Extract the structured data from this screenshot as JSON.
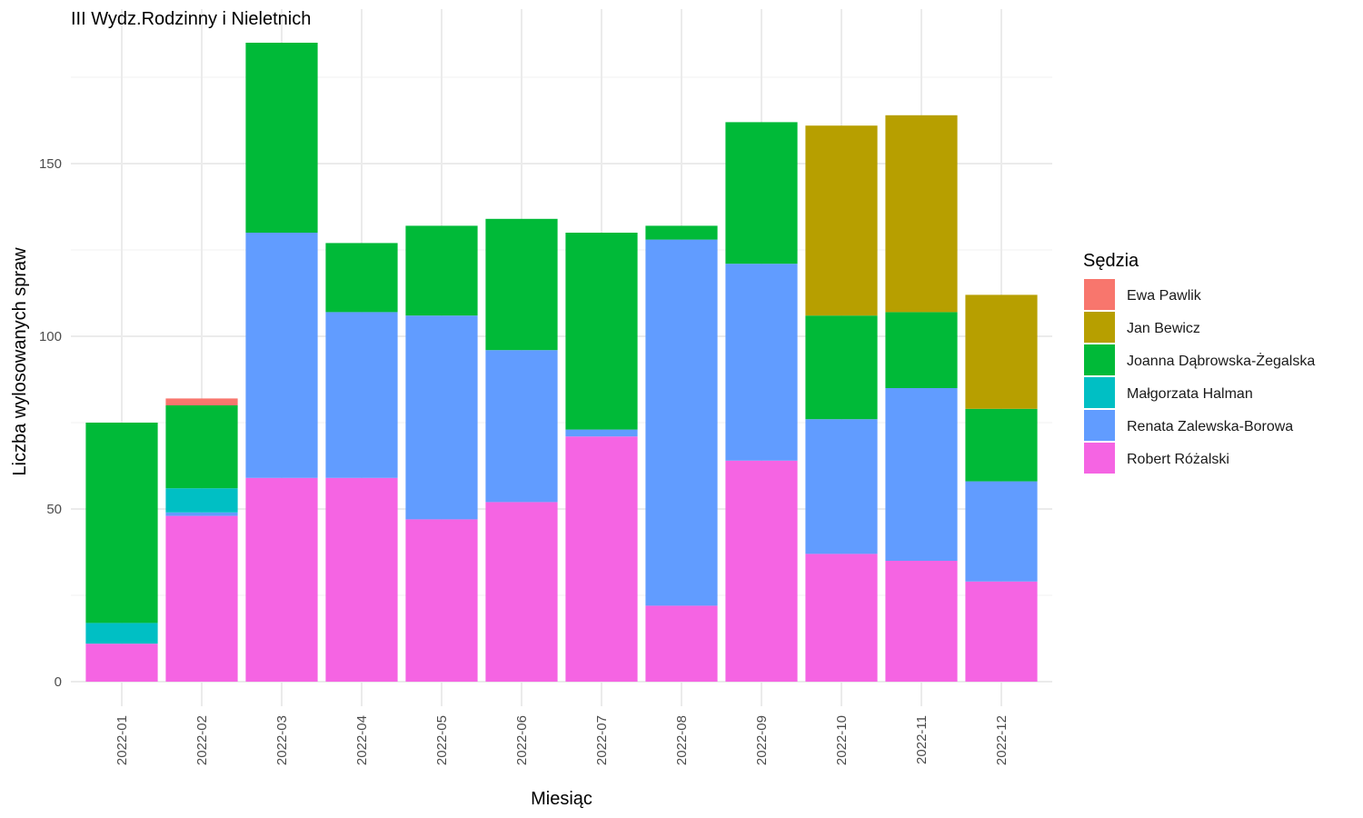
{
  "chart_data": {
    "type": "bar",
    "stacked": true,
    "title": "III Wydz.Rodzinny i Nieletnich",
    "xlabel": "Miesiąc",
    "ylabel": "Liczba wylosowanych spraw",
    "ylim": [
      0,
      190
    ],
    "yticks": [
      0,
      50,
      100,
      150
    ],
    "grid": true,
    "legend_title": "Sędzia",
    "legend_position": "right",
    "categories": [
      "2022-01",
      "2022-02",
      "2022-03",
      "2022-04",
      "2022-05",
      "2022-06",
      "2022-07",
      "2022-08",
      "2022-09",
      "2022-10",
      "2022-11",
      "2022-12"
    ],
    "series": [
      {
        "name": "Ewa Pawlik",
        "color": "#F8766D",
        "values": [
          0,
          2,
          0,
          0,
          0,
          0,
          0,
          0,
          0,
          0,
          0,
          0
        ]
      },
      {
        "name": "Jan Bewicz",
        "color": "#B79F00",
        "values": [
          0,
          0,
          0,
          0,
          0,
          0,
          0,
          0,
          0,
          55,
          57,
          33
        ]
      },
      {
        "name": "Joanna Dąbrowska-Żegalska",
        "color": "#00BA38",
        "values": [
          58,
          24,
          55,
          20,
          26,
          38,
          57,
          4,
          41,
          30,
          22,
          21
        ]
      },
      {
        "name": "Małgorzata Halman",
        "color": "#00BFC4",
        "values": [
          6,
          7,
          0,
          0,
          0,
          0,
          0,
          0,
          0,
          0,
          0,
          0
        ]
      },
      {
        "name": "Renata Zalewska-Borowa",
        "color": "#619CFF",
        "values": [
          0,
          1,
          71,
          48,
          59,
          44,
          2,
          106,
          57,
          39,
          50,
          29
        ]
      },
      {
        "name": "Robert Różalski",
        "color": "#F564E3",
        "values": [
          11,
          48,
          59,
          59,
          47,
          52,
          71,
          22,
          64,
          37,
          35,
          29
        ]
      }
    ]
  }
}
